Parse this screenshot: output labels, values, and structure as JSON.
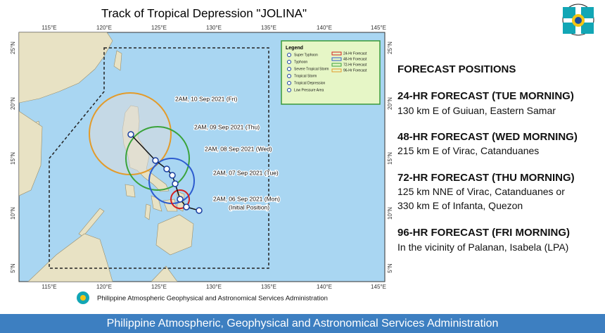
{
  "map": {
    "title": "Track of Tropical Depression \"JOLINA\"",
    "lon_labels": [
      "115°E",
      "120°E",
      "125°E",
      "130°E",
      "135°E",
      "140°E",
      "145°E"
    ],
    "lat_labels": [
      "25°N",
      "20°N",
      "15°N",
      "10°N",
      "5°N"
    ],
    "track_labels": [
      "2AM, 10 Sep 2021 (Fri)",
      "2AM, 09 Sep 2021 (Thu)",
      "2AM, 08 Sep 2021 (Wed)",
      "2AM, 07 Sep 2021 (Tue)",
      "2AM, 06 Sep 2021 (Mon)"
    ],
    "initial_note": "(Initial Position)",
    "legend": {
      "title": "Legend",
      "categories": [
        "Super Typhoon",
        "Typhoon",
        "Severe Tropical Storm",
        "Tropical Storm",
        "Tropical Depression",
        "Low Pressure Area"
      ],
      "forecasts": [
        "24-Hr Forecast",
        "48-Hr Forecast",
        "72-Hr Forecast",
        "96-Hr Forecast"
      ]
    },
    "credit": "Philippine Atmospheric Geophysical and Astronomical Services Administration"
  },
  "forecast": {
    "heading": "FORECAST POSITIONS",
    "items": [
      {
        "title": "24-HR FORECAST (TUE MORNING)",
        "lines": [
          "130 km E of Guiuan, Eastern Samar"
        ]
      },
      {
        "title": "48-HR FORECAST (WED MORNING)",
        "lines": [
          "215 km E of Virac, Catanduanes"
        ]
      },
      {
        "title": "72-HR FORECAST (THU MORNING)",
        "lines": [
          "125 km NNE of Virac, Catanduanes or",
          "330 km E of Infanta, Quezon"
        ]
      },
      {
        "title": "96-HR FORECAST (FRI MORNING)",
        "lines": [
          "In the vicinity of Palanan, Isabela (LPA)"
        ]
      }
    ]
  },
  "footer": "Philippine Atmospheric, Geophysical and Astronomical Services Administration"
}
